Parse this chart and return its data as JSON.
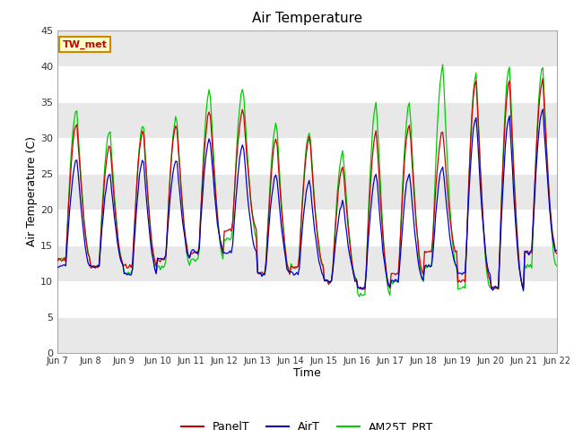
{
  "title": "Air Temperature",
  "xlabel": "Time",
  "ylabel": "Air Temperature (C)",
  "ylim": [
    0,
    45
  ],
  "yticks": [
    0,
    5,
    10,
    15,
    20,
    25,
    30,
    35,
    40,
    45
  ],
  "bg_color": "#ffffff",
  "plot_bg_color": "#ffffff",
  "stripe_color": "#e8e8e8",
  "line_colors": {
    "PanelT": "#cc0000",
    "AirT": "#0000cc",
    "AM25T_PRT": "#00cc00"
  },
  "legend_label": "TW_met",
  "legend_box_color": "#ffffcc",
  "legend_box_edge": "#cc8800",
  "tick_labels": [
    "Jun 7",
    "Jun 8",
    "Jun 9",
    "Jun 10",
    "Jun 11",
    "Jun 12",
    "Jun 13",
    "Jun 14",
    "Jun 15",
    "Jun 16",
    "Jun 17",
    "Jun 18",
    "Jun 19",
    "Jun 20",
    "Jun 21",
    "Jun 22"
  ],
  "panel_mins": [
    13,
    12,
    12,
    13,
    14,
    17,
    11,
    12,
    10,
    9,
    11,
    14,
    10,
    9,
    14
  ],
  "panel_maxs": [
    32,
    29,
    31,
    32,
    34,
    34,
    30,
    30,
    26,
    31,
    32,
    31,
    38,
    38,
    38
  ],
  "air_mins": [
    12,
    12,
    11,
    13,
    14,
    14,
    11,
    11,
    10,
    9,
    10,
    12,
    11,
    9,
    14
  ],
  "air_maxs": [
    27,
    25,
    27,
    27,
    30,
    29,
    25,
    24,
    21,
    25,
    25,
    26,
    33,
    33,
    34
  ],
  "am25_mins": [
    13,
    12,
    11,
    12,
    13,
    16,
    11,
    12,
    10,
    8,
    10,
    12,
    9,
    9,
    12
  ],
  "am25_maxs": [
    34,
    31,
    32,
    33,
    37,
    37,
    32,
    31,
    28,
    35,
    35,
    40,
    39,
    40,
    40
  ]
}
